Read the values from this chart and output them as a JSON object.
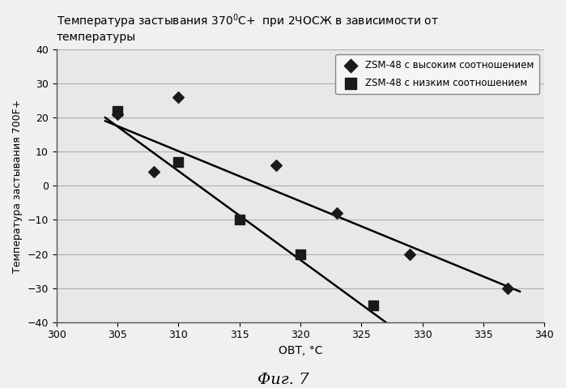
{
  "title_part1": "Температура застывания 370",
  "title_sup": "0",
  "title_part2": "C+  при 2ЧОСЖ в зависимости от",
  "title_line2": "температуры",
  "xlabel": "ОВТ, °C",
  "ylabel": "Температура застывания 700F+",
  "footer": "Фиг. 7",
  "xlim": [
    300,
    340
  ],
  "ylim": [
    -40,
    40
  ],
  "xticks": [
    300,
    305,
    310,
    315,
    320,
    325,
    330,
    335,
    340
  ],
  "yticks": [
    -40,
    -30,
    -20,
    -10,
    0,
    10,
    20,
    30,
    40
  ],
  "series_high": {
    "label": "ZSM-48 с высоким соотношением",
    "x": [
      305,
      308,
      310,
      318,
      323,
      329,
      337
    ],
    "y": [
      21,
      4,
      26,
      6,
      -8,
      -20,
      -30
    ],
    "marker": "D",
    "color": "#1a1a1a",
    "markersize": 7,
    "trendline": {
      "x0": 304,
      "x1": 338,
      "y0": 19,
      "y1": -31
    }
  },
  "series_low": {
    "label": "ZSM-48 с низким соотношением",
    "x": [
      305,
      310,
      315,
      320,
      326
    ],
    "y": [
      22,
      7,
      -10,
      -20,
      -35
    ],
    "marker": "s",
    "color": "#1a1a1a",
    "markersize": 8,
    "trendline": {
      "x0": 304,
      "x1": 327,
      "y0": 20,
      "y1": -40
    }
  },
  "background_color": "#f0f0f0",
  "grid_color": "#b0b0b0",
  "plot_bg": "#e8e8e8"
}
